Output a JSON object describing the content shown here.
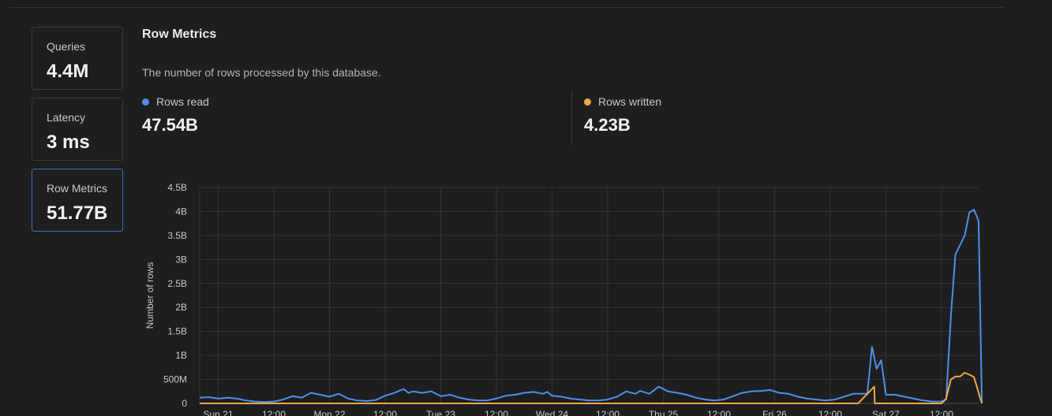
{
  "cards": [
    {
      "label": "Queries",
      "value": "4.4M"
    },
    {
      "label": "Latency",
      "value": "3 ms"
    },
    {
      "label": "Row Metrics",
      "value": "51.77B"
    }
  ],
  "active_card": "Row Metrics",
  "section": {
    "title": "Row Metrics",
    "description": "The number of rows processed by this database."
  },
  "legend": {
    "read": {
      "label": "Rows read",
      "value": "47.54B",
      "color": "#4a90f0"
    },
    "written": {
      "label": "Rows written",
      "value": "4.23B",
      "color": "#f5a742"
    }
  },
  "chart_data": {
    "type": "line",
    "ylabel": "Number of rows",
    "y_tick_labels": [
      "0",
      "500M",
      "1B",
      "1.5B",
      "2B",
      "2.5B",
      "3B",
      "3.5B",
      "4B",
      "4.5B"
    ],
    "ylim": [
      0,
      4.5
    ],
    "y_unit": "billions of rows",
    "x_tick_labels": [
      "Sun 21",
      "12:00",
      "Mon 22",
      "12:00",
      "Tue 23",
      "12:00",
      "Wed 24",
      "12:00",
      "Thu 25",
      "12:00",
      "Fri 26",
      "12:00",
      "Sat 27",
      "12:00"
    ],
    "x_unit": "hours since start of displayed range (ticks every 12h)",
    "xlim": [
      -4,
      164
    ],
    "grid": true,
    "series": [
      {
        "name": "Rows read",
        "color": "#4a90f0",
        "points": [
          [
            -4,
            0.12
          ],
          [
            -2,
            0.13
          ],
          [
            0,
            0.1
          ],
          [
            2,
            0.12
          ],
          [
            4,
            0.1
          ],
          [
            6,
            0.06
          ],
          [
            8,
            0.04
          ],
          [
            10,
            0.03
          ],
          [
            12,
            0.04
          ],
          [
            14,
            0.08
          ],
          [
            16,
            0.15
          ],
          [
            18,
            0.12
          ],
          [
            20,
            0.22
          ],
          [
            22,
            0.18
          ],
          [
            24,
            0.14
          ],
          [
            26,
            0.2
          ],
          [
            28,
            0.1
          ],
          [
            30,
            0.06
          ],
          [
            32,
            0.05
          ],
          [
            34,
            0.07
          ],
          [
            36,
            0.16
          ],
          [
            38,
            0.22
          ],
          [
            40,
            0.3
          ],
          [
            41,
            0.22
          ],
          [
            42,
            0.25
          ],
          [
            44,
            0.22
          ],
          [
            46,
            0.25
          ],
          [
            48,
            0.15
          ],
          [
            50,
            0.18
          ],
          [
            52,
            0.12
          ],
          [
            54,
            0.08
          ],
          [
            56,
            0.06
          ],
          [
            58,
            0.06
          ],
          [
            60,
            0.1
          ],
          [
            62,
            0.16
          ],
          [
            64,
            0.18
          ],
          [
            66,
            0.22
          ],
          [
            68,
            0.24
          ],
          [
            70,
            0.2
          ],
          [
            71,
            0.24
          ],
          [
            72,
            0.16
          ],
          [
            74,
            0.14
          ],
          [
            76,
            0.1
          ],
          [
            78,
            0.08
          ],
          [
            80,
            0.06
          ],
          [
            82,
            0.06
          ],
          [
            84,
            0.08
          ],
          [
            86,
            0.14
          ],
          [
            88,
            0.25
          ],
          [
            90,
            0.2
          ],
          [
            91,
            0.26
          ],
          [
            93,
            0.2
          ],
          [
            95,
            0.35
          ],
          [
            97,
            0.25
          ],
          [
            99,
            0.22
          ],
          [
            101,
            0.18
          ],
          [
            103,
            0.12
          ],
          [
            105,
            0.08
          ],
          [
            107,
            0.06
          ],
          [
            109,
            0.08
          ],
          [
            111,
            0.15
          ],
          [
            113,
            0.22
          ],
          [
            115,
            0.25
          ],
          [
            117,
            0.26
          ],
          [
            119,
            0.28
          ],
          [
            121,
            0.22
          ],
          [
            123,
            0.2
          ],
          [
            125,
            0.14
          ],
          [
            127,
            0.1
          ],
          [
            129,
            0.08
          ],
          [
            131,
            0.06
          ],
          [
            133,
            0.08
          ],
          [
            135,
            0.14
          ],
          [
            137,
            0.2
          ],
          [
            139,
            0.2
          ],
          [
            140,
            0.2
          ],
          [
            141,
            1.18
          ],
          [
            142,
            0.72
          ],
          [
            143,
            0.9
          ],
          [
            144,
            0.18
          ],
          [
            146,
            0.18
          ],
          [
            148,
            0.14
          ],
          [
            150,
            0.1
          ],
          [
            152,
            0.06
          ],
          [
            154,
            0.04
          ],
          [
            156,
            0.04
          ],
          [
            157,
            0.08
          ],
          [
            158,
            1.8
          ],
          [
            159,
            3.1
          ],
          [
            160,
            3.3
          ],
          [
            161,
            3.5
          ],
          [
            162,
            3.98
          ],
          [
            163,
            4.04
          ],
          [
            164,
            3.8
          ],
          [
            164.7,
            0.0
          ]
        ]
      },
      {
        "name": "Rows written",
        "color": "#f5a742",
        "points": [
          [
            -4,
            0
          ],
          [
            138,
            0
          ],
          [
            140,
            0.2
          ],
          [
            141.5,
            0.35
          ],
          [
            141.6,
            0
          ],
          [
            156,
            0
          ],
          [
            157,
            0.1
          ],
          [
            158,
            0.5
          ],
          [
            159,
            0.56
          ],
          [
            160,
            0.56
          ],
          [
            161,
            0.64
          ],
          [
            162,
            0.6
          ],
          [
            163,
            0.55
          ],
          [
            164.7,
            0
          ]
        ]
      }
    ]
  }
}
